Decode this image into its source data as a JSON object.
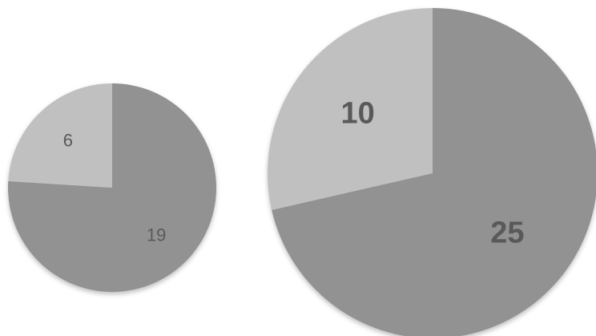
{
  "chart_data": [
    {
      "type": "pie",
      "slices": [
        {
          "label": "19",
          "value": 19,
          "color": "#929292"
        },
        {
          "label": "6",
          "value": 6,
          "color": "#c0c0c0"
        }
      ]
    },
    {
      "type": "pie",
      "slices": [
        {
          "label": "25",
          "value": 25,
          "color": "#929292"
        },
        {
          "label": "10",
          "value": 10,
          "color": "#c0c0c0"
        }
      ]
    }
  ]
}
